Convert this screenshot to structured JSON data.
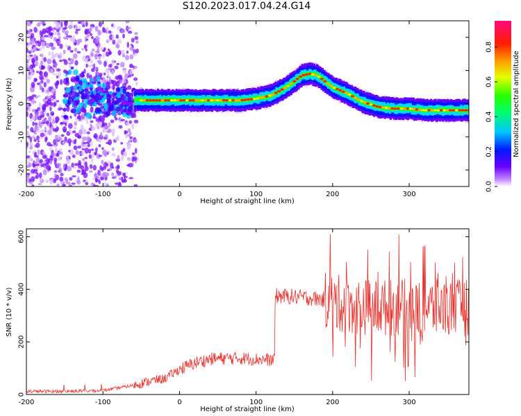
{
  "page": {
    "title": "S120.2023.017.04.24.G14"
  },
  "chart_data": [
    {
      "type": "heatmap",
      "title": "S120.2023.017.04.24.G14",
      "xlabel": "Height of straight line (km)",
      "ylabel": "Frequency (Hz)",
      "xlim": [
        -200,
        378
      ],
      "ylim": [
        -25,
        25
      ],
      "x_ticks": [
        -200,
        -100,
        0,
        100,
        200,
        300
      ],
      "y_ticks": [
        -20,
        -10,
        0,
        10,
        20
      ],
      "ridge": {
        "x": [
          -60,
          -40,
          -20,
          0,
          20,
          40,
          60,
          80,
          100,
          120,
          140,
          160,
          170,
          180,
          200,
          220,
          240,
          260,
          280,
          300,
          320,
          340,
          360,
          378
        ],
        "y": [
          1,
          1,
          1,
          1,
          1,
          1,
          1,
          1,
          1.5,
          2.5,
          5,
          8.5,
          9,
          8.5,
          5,
          3,
          0.5,
          -1,
          -1.5,
          -1.5,
          -2,
          -2,
          -2,
          -2
        ]
      },
      "colorbar": {
        "label": "Normalized spectral amplitude",
        "ticks": [
          "0.0",
          "0.2",
          "0.4",
          "0.6",
          "0.8"
        ],
        "range": [
          0,
          0.95
        ]
      }
    },
    {
      "type": "line",
      "xlabel": "Height of straight line (km)",
      "ylabel": "SNR (10 * v/v)",
      "xlim": [
        -200,
        378
      ],
      "ylim": [
        0,
        630
      ],
      "x_ticks": [
        -200,
        -100,
        0,
        100,
        200,
        300
      ],
      "y_ticks": [
        0,
        200,
        400,
        600
      ],
      "color": "#e8302a",
      "trend": {
        "x": [
          -200,
          -150,
          -100,
          -60,
          -40,
          -20,
          0,
          20,
          40,
          60,
          80,
          100,
          124,
          125,
          160,
          190,
          200,
          250,
          300,
          378
        ],
        "y": [
          12,
          12,
          15,
          35,
          50,
          60,
          95,
          120,
          135,
          138,
          138,
          135,
          130,
          375,
          370,
          360,
          350,
          330,
          330,
          330
        ]
      }
    }
  ]
}
